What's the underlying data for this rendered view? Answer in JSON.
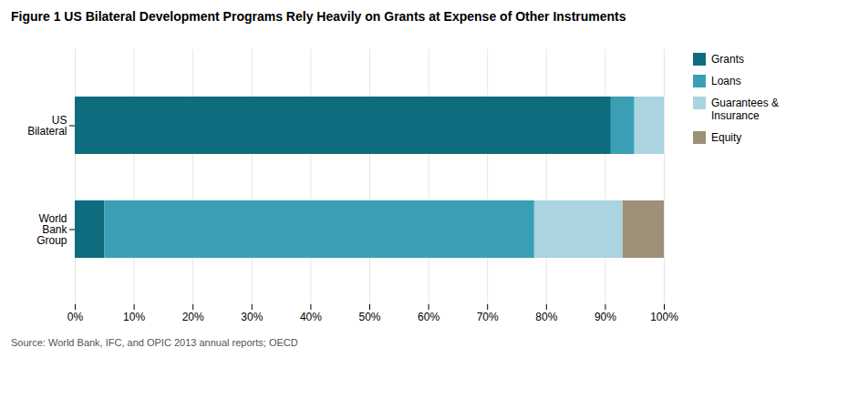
{
  "chart_data": {
    "type": "bar",
    "orientation": "horizontal",
    "stacked": true,
    "title": "Figure 1  US Bilateral Development Programs Rely Heavily on Grants at Expense of Other Instruments",
    "caption": "Source: World Bank, IFC, and OPIC 2013 annual reports; OECD",
    "categories": [
      "US\nBilateral",
      "World\nBank\nGroup"
    ],
    "series": [
      {
        "name": "Grants",
        "color": "#0d6c7e",
        "values": [
          0.91,
          0.05
        ]
      },
      {
        "name": "Loans",
        "color": "#3a9fb5",
        "values": [
          0.04,
          0.73
        ]
      },
      {
        "name": "Guarantees &\nInsurance",
        "color": "#aad4e0",
        "values": [
          0.05,
          0.15
        ]
      },
      {
        "name": "Equity",
        "color": "#9e9078",
        "values": [
          0.0,
          0.07
        ]
      }
    ],
    "xlim": [
      0,
      1.0
    ],
    "xticks": [
      {
        "value": 0,
        "label": "0%"
      },
      {
        "value": 0.1,
        "label": "10%"
      },
      {
        "value": 0.2,
        "label": "20%"
      },
      {
        "value": 0.3,
        "label": "30%"
      },
      {
        "value": 0.4,
        "label": "40%"
      },
      {
        "value": 0.5,
        "label": "50%"
      },
      {
        "value": 0.6,
        "label": "60%"
      },
      {
        "value": 0.7,
        "label": "70%"
      },
      {
        "value": 0.8,
        "label": "80%"
      },
      {
        "value": 0.9,
        "label": "90%"
      },
      {
        "value": 1.0,
        "label": "100%"
      }
    ],
    "grid": true,
    "legend": "right"
  }
}
